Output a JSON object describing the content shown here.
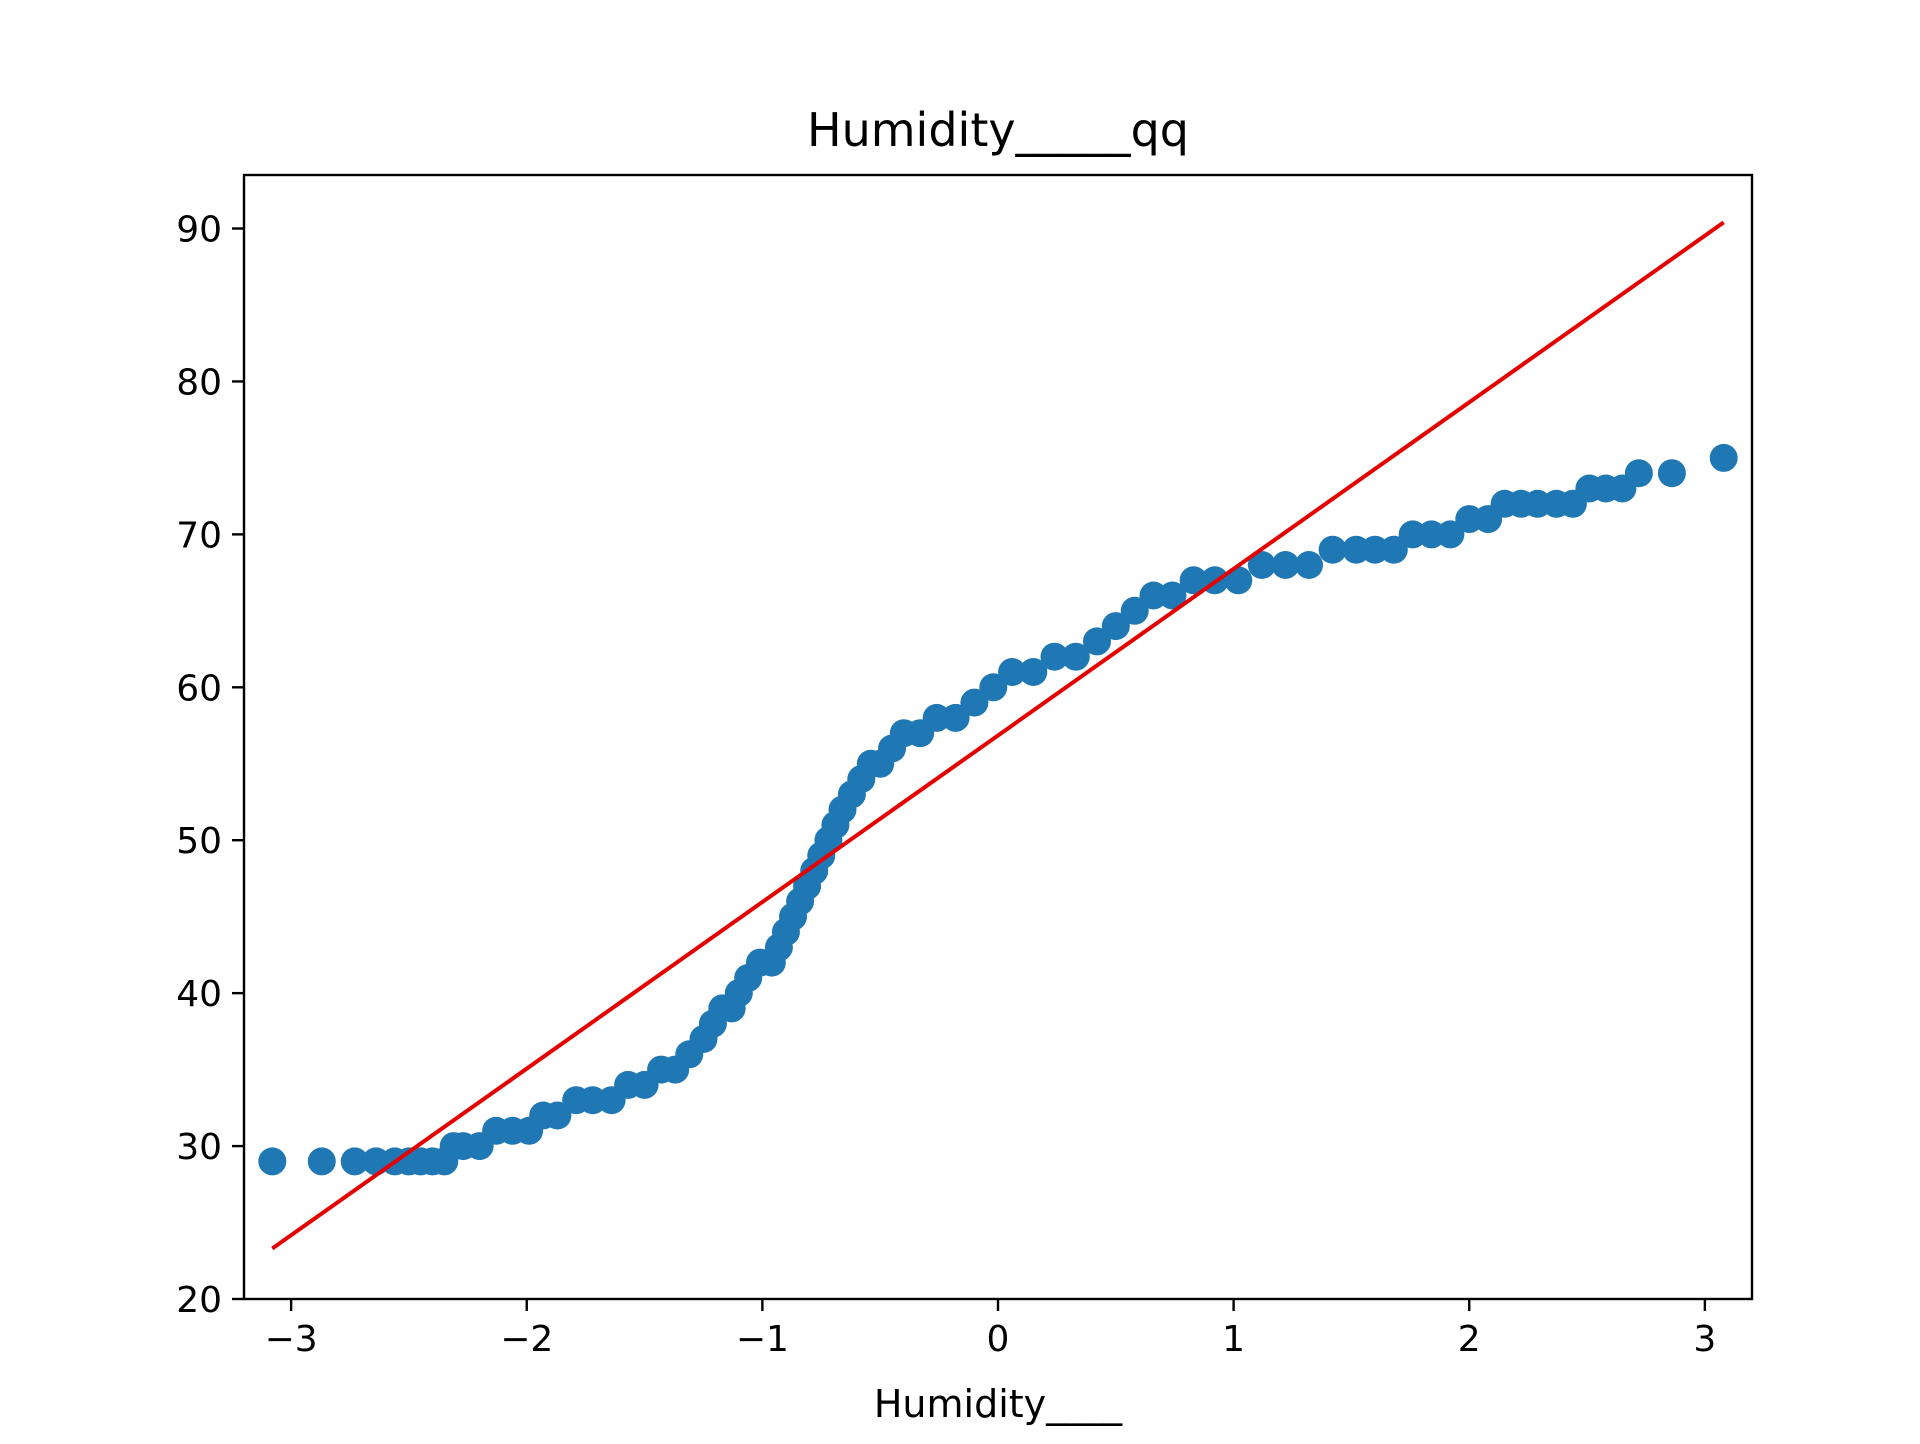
{
  "chart_data": {
    "type": "scatter",
    "title": "Humidity_____qq",
    "xlabel": "Humidity____",
    "ylabel": "",
    "xlim": [
      -3.2,
      3.2
    ],
    "ylim": [
      20,
      93.5
    ],
    "xticks": [
      -3,
      -2,
      -1,
      0,
      1,
      2,
      3
    ],
    "xtick_labels": [
      "−3",
      "−2",
      "−1",
      "0",
      "1",
      "2",
      "3"
    ],
    "yticks": [
      20,
      30,
      40,
      50,
      60,
      70,
      80,
      90
    ],
    "ytick_labels": [
      "20",
      "30",
      "40",
      "50",
      "60",
      "70",
      "80",
      "90"
    ],
    "grid": false,
    "legend": "none",
    "series": [
      {
        "kind": "points",
        "color": "#1f77b4",
        "x": [
          -3.08,
          -2.87,
          -2.73,
          -2.64,
          -2.56,
          -2.5,
          -2.45,
          -2.4,
          -2.35,
          -2.31,
          -2.27,
          -2.2,
          -2.13,
          -2.06,
          -1.99,
          -1.93,
          -1.87,
          -1.79,
          -1.72,
          -1.64,
          -1.57,
          -1.5,
          -1.43,
          -1.37,
          -1.31,
          -1.25,
          -1.21,
          -1.17,
          -1.13,
          -1.1,
          -1.06,
          -1.01,
          -0.96,
          -0.93,
          -0.9,
          -0.87,
          -0.84,
          -0.81,
          -0.78,
          -0.75,
          -0.72,
          -0.69,
          -0.66,
          -0.62,
          -0.58,
          -0.54,
          -0.5,
          -0.45,
          -0.4,
          -0.33,
          -0.26,
          -0.18,
          -0.1,
          -0.02,
          0.06,
          0.15,
          0.24,
          0.33,
          0.42,
          0.5,
          0.58,
          0.66,
          0.74,
          0.83,
          0.92,
          1.02,
          1.12,
          1.22,
          1.32,
          1.42,
          1.52,
          1.6,
          1.68,
          1.76,
          1.84,
          1.92,
          2.0,
          2.08,
          2.15,
          2.22,
          2.29,
          2.37,
          2.44,
          2.51,
          2.58,
          2.65,
          2.72,
          2.86,
          3.08
        ],
        "y": [
          29,
          29,
          29,
          29,
          29,
          29,
          29,
          29,
          29,
          30,
          30,
          30,
          31,
          31,
          31,
          32,
          32,
          33,
          33,
          33,
          34,
          34,
          35,
          35,
          36,
          37,
          38,
          39,
          39,
          40,
          41,
          42,
          42,
          43,
          44,
          45,
          46,
          47,
          48,
          49,
          50,
          51,
          52,
          53,
          54,
          55,
          55,
          56,
          57,
          57,
          58,
          58,
          59,
          60,
          61,
          61,
          62,
          62,
          63,
          64,
          65,
          66,
          66,
          67,
          67,
          67,
          68,
          68,
          68,
          69,
          69,
          69,
          69,
          70,
          70,
          70,
          71,
          71,
          72,
          72,
          72,
          72,
          72,
          73,
          73,
          73,
          74,
          74,
          75
        ]
      },
      {
        "kind": "line",
        "color": "#e50000",
        "x": [
          -3.08,
          3.08
        ],
        "y": [
          23.3,
          90.4
        ]
      }
    ]
  }
}
